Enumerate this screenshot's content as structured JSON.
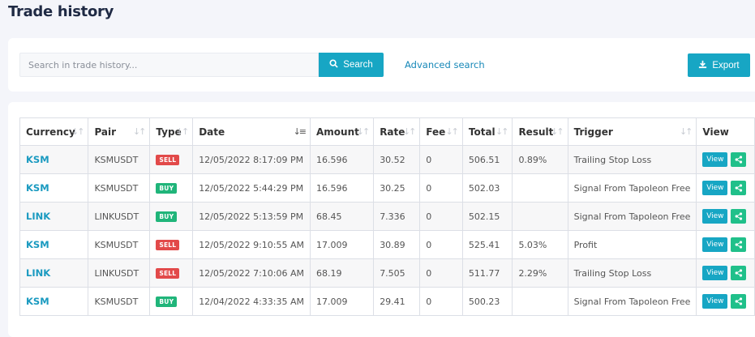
{
  "page": {
    "title": "Trade history"
  },
  "search": {
    "placeholder": "Search in trade history...",
    "button_label": "Search",
    "advanced_label": "Advanced search",
    "export_label": "Export"
  },
  "table": {
    "headers": [
      "Currency",
      "Pair",
      "Type",
      "Date",
      "Amount",
      "Rate",
      "Fee",
      "Total",
      "Result",
      "Trigger",
      "View"
    ],
    "rows": [
      {
        "currency": "KSM",
        "pair": "KSMUSDT",
        "type": "SELL",
        "date": "12/05/2022 8:17:09 PM",
        "amount": "16.596",
        "rate": "30.52",
        "fee": "0",
        "total": "506.51",
        "result": "0.89%",
        "trigger": "Trailing Stop Loss",
        "view": "View"
      },
      {
        "currency": "KSM",
        "pair": "KSMUSDT",
        "type": "BUY",
        "date": "12/05/2022 5:44:29 PM",
        "amount": "16.596",
        "rate": "30.25",
        "fee": "0",
        "total": "502.03",
        "result": "",
        "trigger": "Signal From Tapoleon Free",
        "view": "View"
      },
      {
        "currency": "LINK",
        "pair": "LINKUSDT",
        "type": "BUY",
        "date": "12/05/2022 5:13:59 PM",
        "amount": "68.45",
        "rate": "7.336",
        "fee": "0",
        "total": "502.15",
        "result": "",
        "trigger": "Signal From Tapoleon Free",
        "view": "View"
      },
      {
        "currency": "KSM",
        "pair": "KSMUSDT",
        "type": "SELL",
        "date": "12/05/2022 9:10:55 AM",
        "amount": "17.009",
        "rate": "30.89",
        "fee": "0",
        "total": "525.41",
        "result": "5.03%",
        "trigger": "Profit",
        "view": "View"
      },
      {
        "currency": "LINK",
        "pair": "LINKUSDT",
        "type": "SELL",
        "date": "12/05/2022 7:10:06 AM",
        "amount": "68.19",
        "rate": "7.505",
        "fee": "0",
        "total": "511.77",
        "result": "2.29%",
        "trigger": "Trailing Stop Loss",
        "view": "View"
      },
      {
        "currency": "KSM",
        "pair": "KSMUSDT",
        "type": "BUY",
        "date": "12/04/2022 4:33:35 AM",
        "amount": "17.009",
        "rate": "29.41",
        "fee": "0",
        "total": "500.23",
        "result": "",
        "trigger": "Signal From Tapoleon Free",
        "view": "View"
      }
    ]
  },
  "colors": {
    "accent": "#17a6c4",
    "sell": "#e24a4a",
    "buy": "#20b57a",
    "result_positive": "#2fbb6f"
  }
}
